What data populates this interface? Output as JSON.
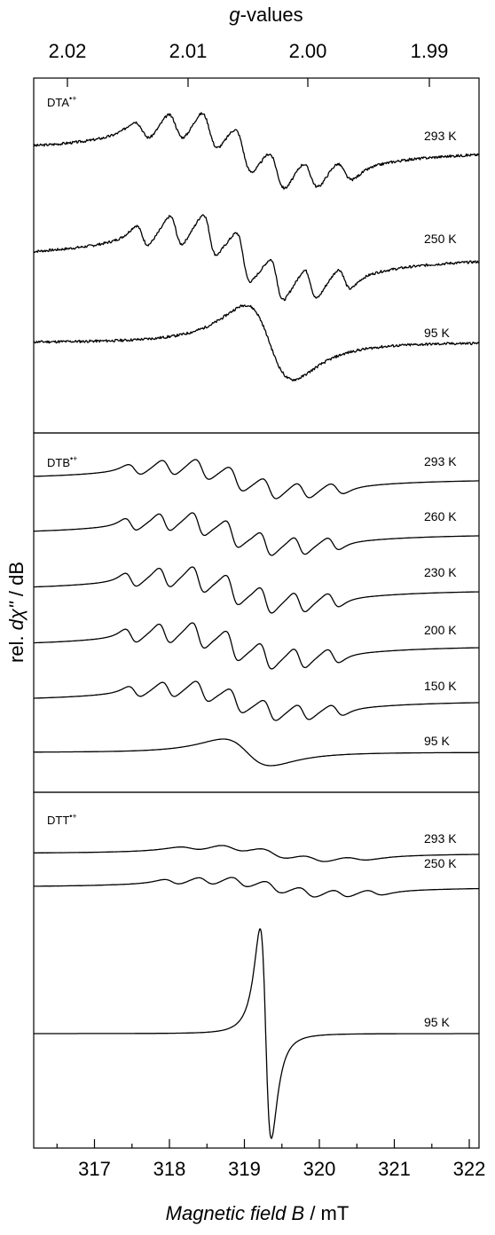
{
  "chart_data": {
    "type": "line",
    "top_axis": {
      "title_italic": "g",
      "title_rest": "-values",
      "ticks": [
        "2.02",
        "2.01",
        "2.00",
        "1.99"
      ],
      "tick_values": [
        2.02,
        2.01,
        2.0,
        1.99
      ]
    },
    "xaxis": {
      "title_italic_1": "Magnetic field ",
      "title_italic_2": "B",
      "title_rest": " / mT",
      "ticks": [
        "317",
        "318",
        "319",
        "320",
        "321",
        "322"
      ],
      "tick_values": [
        317,
        318,
        319,
        320,
        321,
        322
      ],
      "xlim": [
        316.2,
        322.15
      ]
    },
    "yaxis": {
      "title_pre": "rel. ",
      "title_italic": "dχ\"",
      "title_post": " / dB"
    },
    "panels": [
      {
        "label": "DTA",
        "label_sup": "•+",
        "spectra": [
          {
            "temperature": "293 K",
            "center": 319.0,
            "linewidth": 0.19,
            "lines": 7,
            "spacing": 0.45,
            "envelope": 0.75,
            "jitter": 0.07,
            "seed": 3
          },
          {
            "temperature": "250 K",
            "center": 319.0,
            "linewidth": 0.15,
            "lines": 7,
            "spacing": 0.45,
            "envelope": 0.7,
            "jitter": 0.06,
            "seed": 7
          },
          {
            "temperature": "95 K",
            "center": 319.35,
            "linewidth": 0.55,
            "lines": 1,
            "spacing": 0,
            "envelope": 1,
            "jitter": 0.07,
            "seed": 11
          }
        ]
      },
      {
        "label": "DTB",
        "label_sup": "•+",
        "spectra": [
          {
            "temperature": "293 K",
            "center": 318.9,
            "linewidth": 0.16,
            "lines": 7,
            "spacing": 0.45,
            "envelope": 0.85,
            "jitter": 0,
            "seed": 1
          },
          {
            "temperature": "260 K",
            "center": 318.85,
            "linewidth": 0.14,
            "lines": 7,
            "spacing": 0.45,
            "envelope": 0.9,
            "jitter": 0,
            "seed": 1
          },
          {
            "temperature": "230 K",
            "center": 318.85,
            "linewidth": 0.14,
            "lines": 7,
            "spacing": 0.45,
            "envelope": 0.95,
            "jitter": 0,
            "seed": 1
          },
          {
            "temperature": "200 K",
            "center": 318.85,
            "linewidth": 0.14,
            "lines": 7,
            "spacing": 0.45,
            "envelope": 0.95,
            "jitter": 0,
            "seed": 1
          },
          {
            "temperature": "150 K",
            "center": 318.9,
            "linewidth": 0.15,
            "lines": 7,
            "spacing": 0.45,
            "envelope": 0.85,
            "jitter": 0,
            "seed": 1
          },
          {
            "temperature": "95 K",
            "center": 319.05,
            "linewidth": 0.55,
            "lines": 1,
            "spacing": 0,
            "envelope": 1,
            "jitter": 0,
            "seed": 1
          }
        ]
      },
      {
        "label": "DTT",
        "label_sup": "•+",
        "spectra": [
          {
            "temperature": "293 K",
            "center": 319.4,
            "linewidth": 0.3,
            "lines": 5,
            "spacing": 0.55,
            "envelope": 0.8,
            "jitter": 0.015,
            "seed": 5
          },
          {
            "temperature": "250 K",
            "center": 319.4,
            "linewidth": 0.2,
            "lines": 7,
            "spacing": 0.45,
            "envelope": 0.85,
            "jitter": 0.015,
            "seed": 9
          },
          {
            "temperature": "95 K",
            "center": 319.3,
            "linewidth": 0.13,
            "lines": 1,
            "spacing": 0,
            "envelope": 1,
            "jitter": 0,
            "seed": 1
          }
        ]
      }
    ]
  }
}
